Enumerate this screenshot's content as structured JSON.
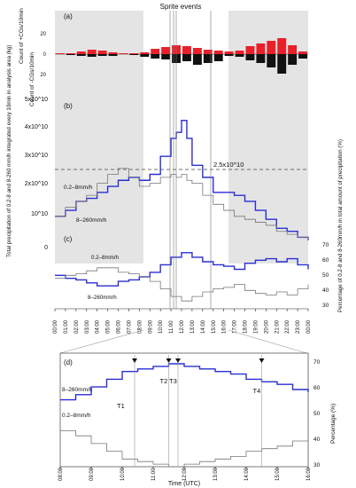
{
  "figure": {
    "top_title": "Sprite events"
  },
  "panel_a": {
    "label": "(a)",
    "ylabel_pos": "Count of +CGs/10min",
    "ylabel_neg": "Count of -CGs/10min",
    "yticks": [
      "20",
      "0",
      "20"
    ]
  },
  "panel_b": {
    "label": "(b)",
    "yticks": [
      "5x10^10",
      "4x10^10",
      "3x10^10",
      "2x10^10",
      "10^10",
      "0"
    ],
    "threshold_label": "2.5x10^10",
    "series_labels": [
      "0.2–8mm/h",
      "8–260mm/h"
    ],
    "left_label": "Total precipitation of 0.2-8 and 8-260 mm/h integrated every 10min in analysis area (kg)"
  },
  "panel_c": {
    "label": "(c)",
    "series_labels": [
      "0.2–8mm/h",
      "8–260mm/h"
    ],
    "right_ticks": [
      "70",
      "60",
      "50",
      "40",
      "30"
    ],
    "right_label": "Percentage of 0.2-8 and 8-260mm/h in total amount of precipitation (%)"
  },
  "time_axis": {
    "ticks": [
      "00:00",
      "01:00",
      "02:00",
      "03:00",
      "04:00",
      "05:00",
      "06:00",
      "07:00",
      "08:00",
      "09:00",
      "10:00",
      "11:00",
      "12:00",
      "13:00",
      "14:00",
      "15:00",
      "16:00",
      "17:00",
      "18:00",
      "19:00",
      "20:00",
      "21:00",
      "22:00",
      "23:00",
      "00:00"
    ]
  },
  "panel_d": {
    "label": "(d)",
    "series_labels": [
      "8–260mm/h",
      "0.2–8mm/h"
    ],
    "event_labels": [
      "T1",
      "T2",
      "T3",
      "T4"
    ],
    "right_ticks": [
      "70",
      "60",
      "50",
      "40",
      "30"
    ],
    "right_label": "Percentage (%)",
    "xticks": [
      "08:00",
      "09:00",
      "10:00",
      "11:00",
      "12:00",
      "13:00",
      "14:00",
      "15:00",
      "16:00"
    ],
    "xlabel": "Time (UTC)"
  },
  "colors": {
    "positive_cg": "#e8202a",
    "negative_cg": "#111111",
    "heavy_rain": "#2a2fd0",
    "light_rain": "#777777",
    "shade": "#e4e4e4"
  },
  "chart_data": [
    {
      "type": "bar",
      "title": "(a)",
      "x_unit": "hour UTC",
      "x": [
        0.5,
        1.5,
        2.5,
        3.5,
        4.5,
        5.5,
        6.5,
        7.5,
        8.5,
        9.5,
        10.5,
        11.5,
        12.5,
        13.5,
        14.5,
        15.5,
        16.5,
        17.5,
        18.5,
        19.5,
        20.5,
        21.5,
        22.5,
        23.5
      ],
      "series": [
        {
          "name": "+CGs",
          "values": [
            1,
            1,
            3,
            5,
            4,
            2,
            1,
            1,
            2,
            6,
            8,
            10,
            9,
            7,
            5,
            4,
            3,
            4,
            9,
            12,
            15,
            18,
            10,
            3
          ]
        },
        {
          "name": "-CGs",
          "values": [
            0,
            1,
            2,
            3,
            2,
            2,
            0,
            1,
            3,
            5,
            6,
            10,
            8,
            12,
            10,
            8,
            2,
            3,
            7,
            10,
            15,
            22,
            12,
            5
          ]
        }
      ],
      "ylim": [
        -25,
        25
      ]
    },
    {
      "type": "line",
      "title": "(b)",
      "x_unit": "hour UTC",
      "series": [
        {
          "name": "8–260mm/h",
          "x": [
            0,
            1,
            2,
            3,
            4,
            5,
            6,
            7,
            8,
            9,
            10,
            11,
            11.5,
            12,
            12.5,
            13,
            14,
            15,
            16,
            17,
            18,
            19,
            20,
            21,
            22,
            23,
            24
          ],
          "y": [
            11000000000.0,
            13000000000.0,
            16000000000.0,
            17000000000.0,
            19000000000.0,
            21000000000.0,
            23000000000.0,
            24000000000.0,
            23000000000.0,
            25000000000.0,
            31000000000.0,
            37000000000.0,
            39000000000.0,
            43000000000.0,
            37000000000.0,
            28000000000.0,
            24000000000.0,
            19000000000.0,
            19000000000.0,
            18000000000.0,
            16000000000.0,
            13000000000.0,
            10000000000.0,
            7000000000.0,
            6000000000.0,
            4000000000.0,
            3000000000.0
          ]
        },
        {
          "name": "0.2–8mm/h",
          "x": [
            0,
            1,
            2,
            3,
            4,
            5,
            6,
            7,
            8,
            9,
            10,
            11,
            11.5,
            12,
            12.5,
            13,
            14,
            15,
            16,
            17,
            18,
            19,
            20,
            21,
            22,
            23,
            24
          ],
          "y": [
            11000000000.0,
            14000000000.0,
            16000000000.0,
            18000000000.0,
            22000000000.0,
            25000000000.0,
            27000000000.0,
            24000000000.0,
            21000000000.0,
            22000000000.0,
            24000000000.0,
            25000000000.0,
            24000000000.0,
            25000000000.0,
            23000000000.0,
            22000000000.0,
            18000000000.0,
            15000000000.0,
            13000000000.0,
            11000000000.0,
            10000000000.0,
            9000000000.0,
            8000000000.0,
            6000000000.0,
            5000000000.0,
            4000000000.0,
            3000000000.0
          ]
        }
      ],
      "threshold": 25000000000.0,
      "ylim": [
        0,
        50000000000.0
      ]
    },
    {
      "type": "line",
      "title": "(c)",
      "x_unit": "hour UTC",
      "series": [
        {
          "name": "8–260mm/h",
          "x": [
            0,
            1,
            2,
            3,
            4,
            5,
            6,
            7,
            8,
            9,
            10,
            11,
            12,
            13,
            14,
            15,
            16,
            17,
            18,
            19,
            20,
            21,
            22,
            23,
            24
          ],
          "y": [
            51,
            49,
            48,
            46,
            44,
            44,
            47,
            48,
            50,
            53,
            58,
            63,
            66,
            63,
            60,
            58,
            57,
            55,
            59,
            61,
            62,
            60,
            62,
            58,
            55
          ]
        },
        {
          "name": "0.2–8mm/h",
          "x": [
            0,
            1,
            2,
            3,
            4,
            5,
            6,
            7,
            8,
            9,
            10,
            11,
            12,
            13,
            14,
            15,
            16,
            17,
            18,
            19,
            20,
            21,
            22,
            23,
            24
          ],
          "y": [
            49,
            51,
            52,
            54,
            56,
            56,
            53,
            52,
            50,
            47,
            42,
            37,
            34,
            37,
            40,
            42,
            43,
            45,
            41,
            39,
            38,
            40,
            38,
            42,
            45
          ]
        }
      ],
      "ylim": [
        30,
        75
      ]
    },
    {
      "type": "line",
      "title": "(d)",
      "x_unit": "hour UTC",
      "series": [
        {
          "name": "8–260mm/h",
          "x": [
            8,
            8.5,
            9,
            9.5,
            10,
            10.5,
            11,
            11.5,
            12,
            12.5,
            13,
            13.5,
            14,
            14.5,
            15,
            15.5,
            16
          ],
          "y": [
            56,
            58,
            61,
            64,
            67,
            68,
            69,
            70,
            69,
            68,
            67,
            66,
            64,
            63,
            62,
            60,
            59
          ]
        },
        {
          "name": "0.2–8mm/h",
          "x": [
            8,
            8.5,
            9,
            9.5,
            10,
            10.5,
            11,
            11.5,
            12,
            12.5,
            13,
            13.5,
            14,
            14.5,
            15,
            15.5,
            16
          ],
          "y": [
            44,
            42,
            39,
            36,
            33,
            32,
            31,
            30,
            31,
            32,
            33,
            34,
            36,
            37,
            38,
            40,
            41
          ]
        }
      ],
      "events": [
        {
          "name": "T1",
          "x": 10.4
        },
        {
          "name": "T2",
          "x": 11.5
        },
        {
          "name": "T3",
          "x": 11.8
        },
        {
          "name": "T4",
          "x": 14.5
        }
      ],
      "xlim": [
        8,
        16
      ],
      "ylim": [
        30,
        70
      ]
    }
  ]
}
